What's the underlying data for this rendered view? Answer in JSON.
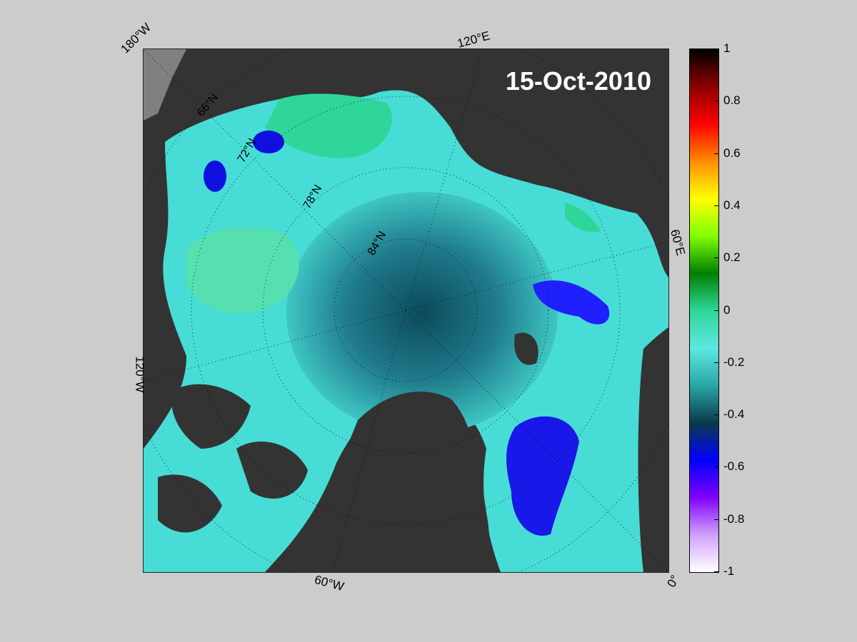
{
  "map": {
    "date": "15-Oct-2010",
    "lon_labels": [
      "180°W",
      "120°E",
      "60°E",
      "0°",
      "60°W",
      "120°W"
    ],
    "lat_labels": [
      "66°N",
      "72°N",
      "78°N",
      "84°N"
    ],
    "colors": {
      "land": "#333333",
      "land_light": "#808080",
      "background": "#cccccc",
      "ice_low": "#0000ff",
      "ice_mid": "#2aa6a6",
      "ice_high": "#5ee8e0",
      "ice_green": "#2fd69a"
    }
  },
  "colorbar": {
    "ticks": [
      "1",
      "0.8",
      "0.6",
      "0.4",
      "0.2",
      "0",
      "-0.2",
      "-0.4",
      "-0.6",
      "-0.8",
      "-1"
    ],
    "range": [
      -1,
      1
    ],
    "colormap_stops": [
      "#000000",
      "#8b0000",
      "#ff0000",
      "#ff8c00",
      "#ffff00",
      "#7fff00",
      "#008000",
      "#2fd69a",
      "#5ee8e0",
      "#2aa6a6",
      "#0a3a4a",
      "#0000ff",
      "#8000ff",
      "#d0a0ff",
      "#ffffff"
    ]
  }
}
